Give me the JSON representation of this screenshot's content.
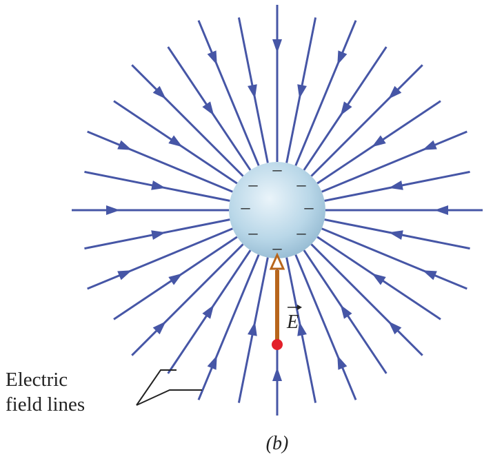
{
  "callout": {
    "line1": "Electric",
    "line2": "field lines"
  },
  "vector_label": "E",
  "charge_sign": "–",
  "caption": "(b)"
}
